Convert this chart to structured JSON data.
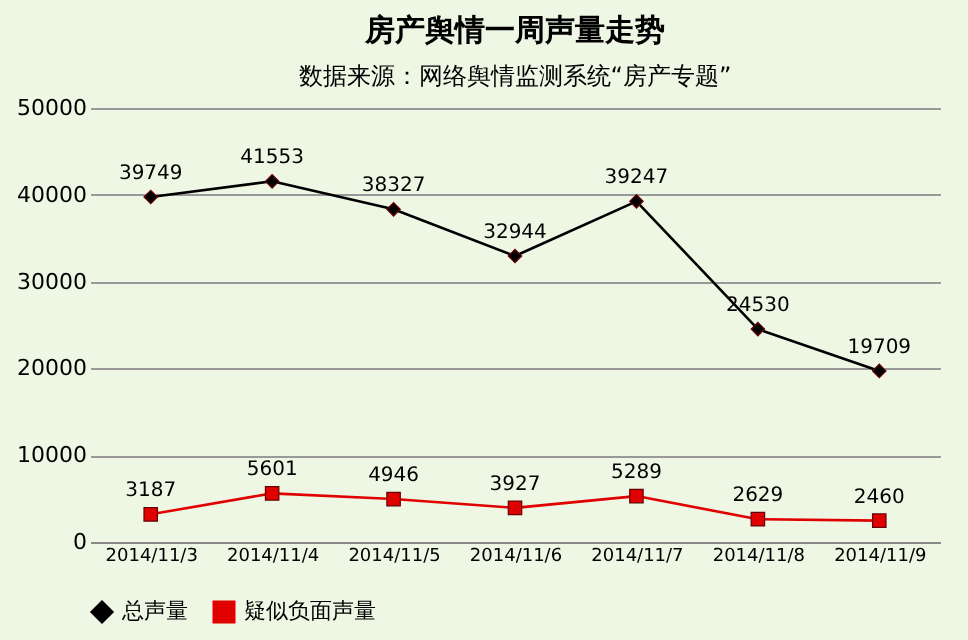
{
  "chart_data": {
    "type": "line",
    "title": "房产舆情一周声量走势",
    "subtitle": "数据来源：网络舆情监测系统“房产专题”",
    "categories": [
      "2014/11/3",
      "2014/11/4",
      "2014/11/5",
      "2014/11/6",
      "2014/11/7",
      "2014/11/8",
      "2014/11/9"
    ],
    "series": [
      {
        "name": "总声量",
        "color": "#000000",
        "marker": "diamond",
        "values": [
          39749,
          41553,
          38327,
          32944,
          39247,
          24530,
          19709
        ]
      },
      {
        "name": "疑似负面声量",
        "color": "#e00000",
        "marker": "square",
        "values": [
          3187,
          5601,
          4946,
          3927,
          5289,
          2629,
          2460
        ]
      }
    ],
    "ylim": [
      0,
      50000
    ],
    "yticks": [
      0,
      10000,
      20000,
      30000,
      40000,
      50000
    ],
    "grid": "y",
    "legend": "bottom",
    "data_labels": true,
    "line_style": "solid"
  }
}
